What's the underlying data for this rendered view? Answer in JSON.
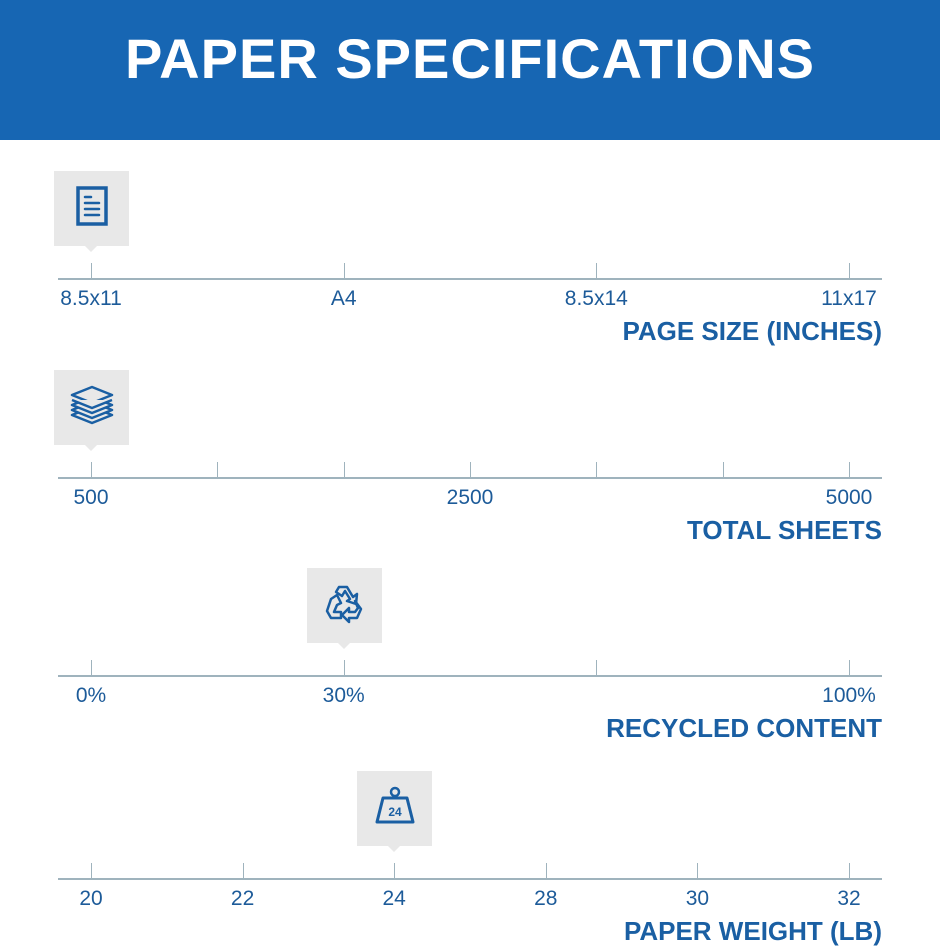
{
  "header": {
    "title": "PAPER SPECIFICATIONS"
  },
  "colors": {
    "brand_blue": "#1766b3",
    "text_blue": "#1a5fa3",
    "axis_gray": "#9fb3bd",
    "marker_bg": "#e8e8e8"
  },
  "scales": [
    {
      "title": "PAGE SIZE (INCHES)",
      "icon": "document-icon",
      "ticks": [
        "8.5x11",
        "A4",
        "8.5x14",
        "11x17"
      ],
      "selected": "8.5x11",
      "selected_index": 0
    },
    {
      "title": "TOTAL SHEETS",
      "icon": "paper-stack-icon",
      "ticks": [
        "500",
        "",
        "",
        "2500",
        "",
        "",
        "5000"
      ],
      "selected": "500",
      "selected_index": 0
    },
    {
      "title": "RECYCLED CONTENT",
      "icon": "recycle-icon",
      "ticks": [
        "0%",
        "30%",
        "",
        "100%"
      ],
      "selected": "30%",
      "selected_index": 1
    },
    {
      "title": "PAPER WEIGHT (LB)",
      "icon": "weight-icon",
      "ticks": [
        "20",
        "22",
        "24",
        "28",
        "30",
        "32"
      ],
      "selected": "24",
      "selected_index": 2,
      "icon_text": "24"
    }
  ]
}
